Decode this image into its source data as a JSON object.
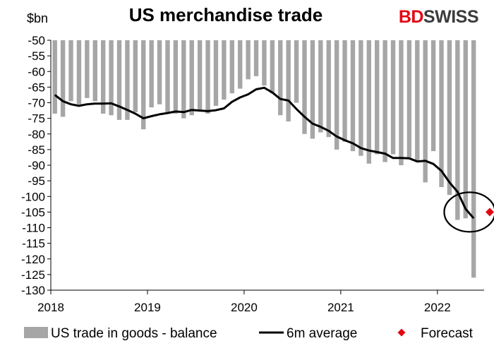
{
  "header": {
    "title": "US merchandise trade",
    "logo_part1": "BD",
    "logo_part2": "SWISS",
    "unit": "$bn"
  },
  "chart_data": {
    "type": "bar",
    "title": "US merchandise trade",
    "ylabel": "$bn",
    "ylim": [
      -130,
      -50
    ],
    "yticks": [
      -50,
      -55,
      -60,
      -65,
      -70,
      -75,
      -80,
      -85,
      -90,
      -95,
      -100,
      -105,
      -110,
      -115,
      -120,
      -125,
      -130
    ],
    "xticks": [
      "2018",
      "2019",
      "2020",
      "2021",
      "2022"
    ],
    "months_start": "2018-01",
    "series": [
      {
        "name": "US trade in goods - balance",
        "kind": "bar",
        "color": "#a6a6a6",
        "values": [
          -73.5,
          -74.5,
          -69.5,
          -70.5,
          -68.5,
          -69.5,
          -73.5,
          -74.0,
          -75.5,
          -75.5,
          -73.0,
          -78.5,
          -71.5,
          -70.5,
          -73.0,
          -73.5,
          -75.0,
          -74.0,
          -72.5,
          -73.5,
          -71.0,
          -69.0,
          -67.0,
          -65.5,
          -62.5,
          -61.5,
          -64.5,
          -67.0,
          -74.0,
          -76.0,
          -70.0,
          -80.0,
          -81.5,
          -79.5,
          -81.0,
          -85.0,
          -82.5,
          -85.5,
          -87.0,
          -89.5,
          -86.5,
          -89.0,
          -86.5,
          -90.0,
          -87.5,
          -89.0,
          -95.5,
          -85.5,
          -97.0,
          -99.5,
          -107.5,
          -107.0,
          -126.0
        ]
      },
      {
        "name": "6m average",
        "kind": "line",
        "color": "#000000",
        "values": [
          -67.5,
          -69.5,
          -70.5,
          -71.0,
          -70.5,
          -70.3,
          -70.3,
          -70.2,
          -71.2,
          -72.3,
          -73.5,
          -75.0,
          -74.3,
          -73.7,
          -73.3,
          -72.8,
          -73.0,
          -72.3,
          -72.5,
          -72.7,
          -72.4,
          -71.8,
          -69.7,
          -68.3,
          -67.3,
          -65.7,
          -65.2,
          -66.7,
          -68.8,
          -69.3,
          -72.0,
          -74.5,
          -76.7,
          -77.7,
          -79.0,
          -80.8,
          -82.0,
          -83.0,
          -84.5,
          -85.3,
          -85.8,
          -86.3,
          -87.7,
          -87.7,
          -87.8,
          -88.8,
          -88.6,
          -89.6,
          -91.8,
          -95.5,
          -98.5,
          -104.0,
          -107.0
        ]
      },
      {
        "name": "Forecast",
        "kind": "point",
        "color": "#e30613",
        "x_month_index": 54,
        "value": -105.0
      }
    ],
    "legend": {
      "placement": "bottom",
      "bars_label": "US trade in goods - balance",
      "line_label": "6m average",
      "forecast_label": "Forecast"
    },
    "grid": false
  }
}
